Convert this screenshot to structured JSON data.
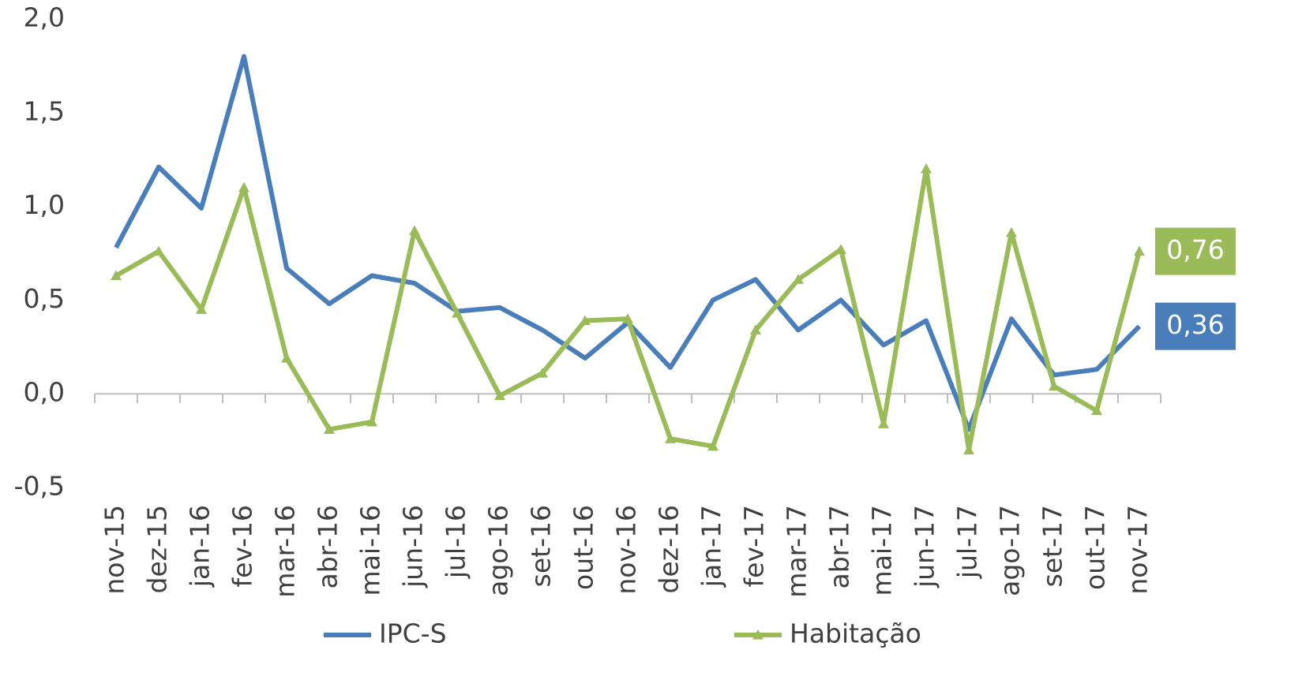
{
  "chart_data": {
    "type": "line",
    "categories": [
      "nov-15",
      "dez-15",
      "jan-16",
      "fev-16",
      "mar-16",
      "abr-16",
      "mai-16",
      "jun-16",
      "jul-16",
      "ago-16",
      "set-16",
      "out-16",
      "nov-16",
      "dez-16",
      "jan-17",
      "fev-17",
      "mar-17",
      "abr-17",
      "mai-17",
      "jun-17",
      "jul-17",
      "ago-17",
      "set-17",
      "out-17",
      "nov-17"
    ],
    "series": [
      {
        "name": "IPC-S",
        "color": "#4a7ebb",
        "marker": "none",
        "values": [
          0.78,
          1.21,
          0.99,
          1.8,
          0.67,
          0.48,
          0.63,
          0.59,
          0.44,
          0.46,
          0.34,
          0.19,
          0.38,
          0.14,
          0.5,
          0.61,
          0.34,
          0.5,
          0.26,
          0.39,
          -0.19,
          0.4,
          0.1,
          0.13,
          0.36
        ],
        "value_labels": [
          null,
          null,
          null,
          null,
          null,
          null,
          null,
          null,
          null,
          null,
          null,
          null,
          null,
          null,
          null,
          null,
          null,
          null,
          null,
          null,
          null,
          null,
          null,
          null,
          "0,36"
        ]
      },
      {
        "name": "Habitação",
        "color": "#9bbb59",
        "marker": "triangle",
        "values": [
          0.63,
          0.76,
          0.45,
          1.1,
          0.19,
          -0.19,
          -0.15,
          0.87,
          0.43,
          -0.01,
          0.11,
          0.39,
          0.4,
          -0.24,
          -0.28,
          0.34,
          0.61,
          0.77,
          -0.16,
          1.2,
          -0.3,
          0.86,
          0.04,
          -0.09,
          0.76
        ],
        "value_labels": [
          null,
          null,
          null,
          null,
          null,
          null,
          null,
          null,
          null,
          null,
          null,
          null,
          null,
          null,
          null,
          null,
          null,
          null,
          null,
          null,
          null,
          null,
          null,
          null,
          "0,76"
        ]
      }
    ],
    "ylim": [
      -0.5,
      2.0
    ],
    "yticks": [
      {
        "value": -0.5,
        "label": "-0,5"
      },
      {
        "value": 0,
        "label": "0,0"
      },
      {
        "value": 0.5,
        "label": "0,5"
      },
      {
        "value": 1.0,
        "label": "1,0"
      },
      {
        "value": 1.5,
        "label": "1,5"
      },
      {
        "value": 2.0,
        "label": "2,0"
      }
    ],
    "grid": false,
    "legend": "bottom"
  }
}
